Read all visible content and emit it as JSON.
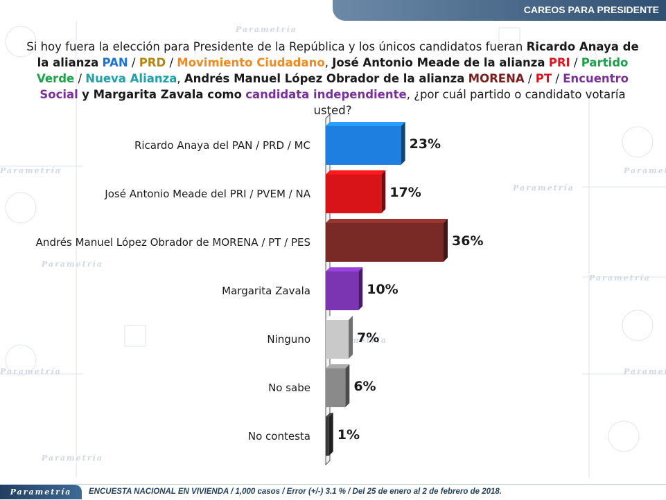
{
  "header": {
    "title": "CAREOS PARA PRESIDENTE"
  },
  "question": {
    "p1": "Si hoy fuera la elección para Presidente de la República y los únicos candidatos fueran ",
    "anaya": "Ricardo Anaya de la alianza",
    "pan": "PAN",
    "sep1": " / ",
    "prd": "PRD",
    "sep2": " / ",
    "mc": "Movimiento Ciudadano",
    "p2": ", ",
    "meade": "José Antonio Meade de la alianza",
    "pri": "PRI",
    "sep3": " / ",
    "pv": "Partido Verde",
    "sep4": " / ",
    "na": "Nueva Alianza",
    "p3": ", ",
    "amlo": "Andrés Manuel López Obrador de la alianza",
    "morena": "MORENA",
    "sep5": " / ",
    "pt": "PT",
    "sep6": " / ",
    "pes": "Encuentro Social",
    "p4": " ",
    "zavala": "y Margarita Zavala como",
    "ind": "candidata independiente",
    "p5": ", ¿por cuál partido o candidato votaría usted?"
  },
  "watermark": "Parametría",
  "colors": {
    "header_bg": "#2f4f72",
    "anaya": "#1f7fe0",
    "meade": "#d91418",
    "amlo": "#7a2a26",
    "zavala": "#7b35b3",
    "ninguno": "#c9c9c9",
    "nosabe": "#8a8a8a",
    "nocontesta": "#3a3a3a"
  },
  "chart_data": {
    "type": "bar",
    "orientation": "horizontal",
    "categories": [
      "Ricardo Anaya del PAN / PRD / MC",
      "José Antonio Meade del PRI / PVEM / NA",
      "Andrés Manuel López Obrador de MORENA / PT / PES",
      "Margarita Zavala",
      "Ninguno",
      "No sabe",
      "No contesta"
    ],
    "values": [
      23,
      17,
      36,
      10,
      7,
      6,
      1
    ],
    "value_labels": [
      "23%",
      "17%",
      "36%",
      "10%",
      "7%",
      "6%",
      "1%"
    ],
    "bar_colors": [
      "#1f7fe0",
      "#d91418",
      "#7a2a26",
      "#7b35b3",
      "#c9c9c9",
      "#8a8a8a",
      "#3a3a3a"
    ],
    "grid": false,
    "legend": "none"
  },
  "footer": {
    "logo": "Parametría",
    "text": "ENCUESTA NACIONAL EN VIVIENDA / 1,000 casos / Error (+/-) 3.1 % / Del 25 de enero al 2 de febrero de 2018."
  }
}
